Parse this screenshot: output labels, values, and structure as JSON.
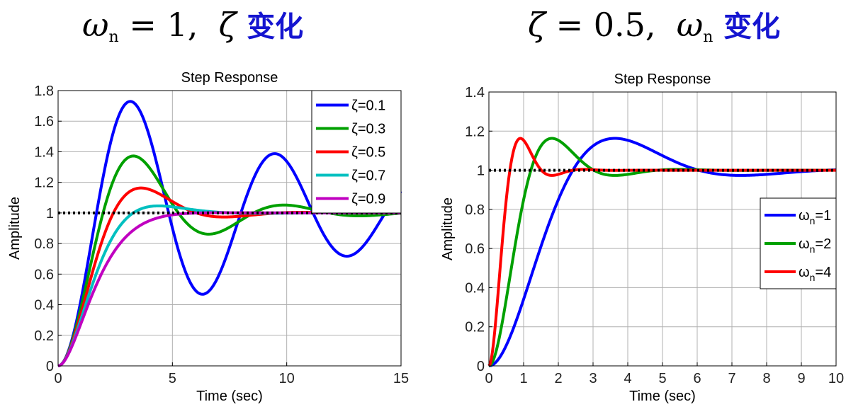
{
  "headings": {
    "left": {
      "symbol": "ω",
      "subscript": "n",
      "value": "= 1,",
      "param": "ζ",
      "label": "变化"
    },
    "right": {
      "param": "ζ",
      "value": "= 0.5,",
      "symbol": "ω",
      "subscript": "n",
      "label": "变化"
    }
  },
  "colors": {
    "blue": "#0000ff",
    "green": "#00a000",
    "red": "#ff0000",
    "cyan": "#00c0c0",
    "magenta": "#c000c0",
    "reference": "#000000"
  },
  "chart_data": [
    {
      "type": "line",
      "title": "Step Response",
      "xlabel": "Time (sec)",
      "ylabel": "Amplitude",
      "xlim": [
        0,
        15
      ],
      "ylim": [
        0,
        1.8
      ],
      "xticks": [
        "0",
        "5",
        "10",
        "15"
      ],
      "yticks": [
        "0",
        "0.2",
        "0.4",
        "0.6",
        "0.8",
        "1",
        "1.2",
        "1.4",
        "1.6",
        "1.8"
      ],
      "grid": true,
      "legend_position": "top-right",
      "reference_line": 1,
      "system": {
        "form": "second-order step response",
        "wn": 1
      },
      "series": [
        {
          "name": "ζ=0.1",
          "zeta": 0.1,
          "wn": 1,
          "color": "#0000ff"
        },
        {
          "name": "ζ=0.3",
          "zeta": 0.3,
          "wn": 1,
          "color": "#00a000"
        },
        {
          "name": "ζ=0.5",
          "zeta": 0.5,
          "wn": 1,
          "color": "#ff0000"
        },
        {
          "name": "ζ=0.7",
          "zeta": 0.7,
          "wn": 1,
          "color": "#00c0c0"
        },
        {
          "name": "ζ=0.9",
          "zeta": 0.9,
          "wn": 1,
          "color": "#c000c0"
        }
      ]
    },
    {
      "type": "line",
      "title": "Step Response",
      "xlabel": "Time (sec)",
      "ylabel": "Amplitude",
      "xlim": [
        0,
        10
      ],
      "ylim": [
        0,
        1.4
      ],
      "xticks": [
        "0",
        "1",
        "2",
        "3",
        "4",
        "5",
        "6",
        "7",
        "8",
        "9",
        "10"
      ],
      "yticks": [
        "0",
        "0.2",
        "0.4",
        "0.6",
        "0.8",
        "1",
        "1.2",
        "1.4"
      ],
      "grid": true,
      "legend_position": "right",
      "reference_line": 1,
      "system": {
        "form": "second-order step response",
        "zeta": 0.5
      },
      "series": [
        {
          "name": "ωn=1",
          "label_main": "ω",
          "label_sub": "n",
          "label_rest": "=1",
          "zeta": 0.5,
          "wn": 1,
          "color": "#0000ff"
        },
        {
          "name": "ωn=2",
          "label_main": "ω",
          "label_sub": "n",
          "label_rest": "=2",
          "zeta": 0.5,
          "wn": 2,
          "color": "#00a000"
        },
        {
          "name": "ωn=4",
          "label_main": "ω",
          "label_sub": "n",
          "label_rest": "=4",
          "zeta": 0.5,
          "wn": 4,
          "color": "#ff0000"
        }
      ]
    }
  ]
}
